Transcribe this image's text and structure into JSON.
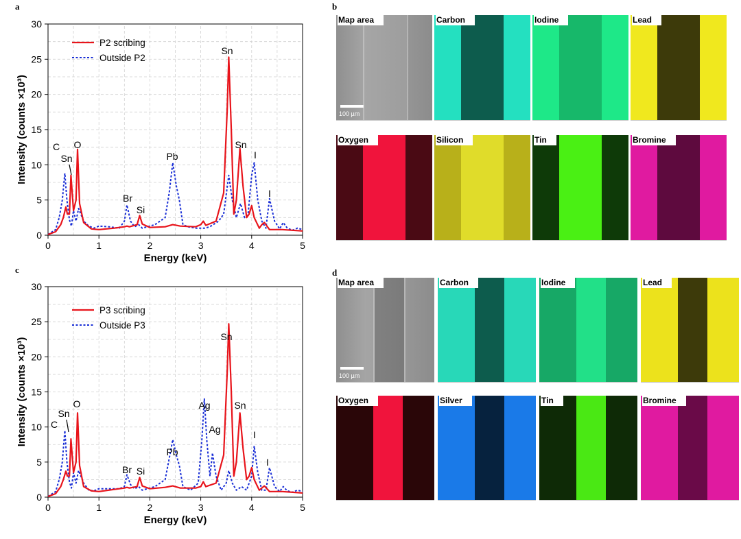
{
  "panels": {
    "a": "a",
    "b": "b",
    "c": "c",
    "d": "d"
  },
  "chart_data": [
    {
      "type": "line",
      "panel": "a",
      "xlabel": "Energy (keV)",
      "ylabel": "Intensity (counts ×10³)",
      "xlim": [
        0,
        5
      ],
      "ylim": [
        0,
        30
      ],
      "xticks": [
        "0",
        "1",
        "2",
        "3",
        "4",
        "5"
      ],
      "yticks": [
        "0",
        "5",
        "10",
        "15",
        "20",
        "25",
        "30"
      ],
      "grid": true,
      "legend_position": "top-left",
      "series": [
        {
          "name": "P2 scribing",
          "color": "#e8141b",
          "style": "solid",
          "x": [
            0,
            0.15,
            0.25,
            0.3,
            0.35,
            0.38,
            0.42,
            0.45,
            0.5,
            0.55,
            0.58,
            0.62,
            0.7,
            0.85,
            1.0,
            1.3,
            1.5,
            1.55,
            1.6,
            1.75,
            1.8,
            1.85,
            2.0,
            2.3,
            2.45,
            2.6,
            2.9,
            3.0,
            3.05,
            3.1,
            3.3,
            3.45,
            3.52,
            3.55,
            3.6,
            3.65,
            3.7,
            3.77,
            3.83,
            3.9,
            3.95,
            4.0,
            4.05,
            4.15,
            4.2,
            4.25,
            4.35,
            4.6,
            5.0
          ],
          "y": [
            0.1,
            0.5,
            1.5,
            2.5,
            4.0,
            3.0,
            3.0,
            8.5,
            3.5,
            5.0,
            12.2,
            4.5,
            1.8,
            0.9,
            0.8,
            1.0,
            1.2,
            1.3,
            1.2,
            1.5,
            2.8,
            1.6,
            1.1,
            1.2,
            1.5,
            1.3,
            1.2,
            1.5,
            2.0,
            1.4,
            2.0,
            6.0,
            18.0,
            25.3,
            15.0,
            3.0,
            5.0,
            12.3,
            7.0,
            2.5,
            3.0,
            4.2,
            2.5,
            1.0,
            1.5,
            1.8,
            0.8,
            0.8,
            0.6
          ]
        },
        {
          "name": "Outside P2",
          "color": "#1a2fd6",
          "style": "dotted",
          "x": [
            0,
            0.15,
            0.22,
            0.28,
            0.33,
            0.37,
            0.42,
            0.46,
            0.5,
            0.55,
            0.6,
            0.7,
            0.8,
            0.9,
            1.0,
            1.2,
            1.4,
            1.5,
            1.55,
            1.62,
            1.7,
            1.78,
            1.85,
            1.95,
            2.1,
            2.3,
            2.38,
            2.45,
            2.52,
            2.58,
            2.65,
            2.75,
            2.9,
            3.0,
            3.1,
            3.2,
            3.35,
            3.45,
            3.55,
            3.62,
            3.7,
            3.78,
            3.86,
            3.93,
            4.0,
            4.05,
            4.12,
            4.2,
            4.28,
            4.35,
            4.45,
            4.55,
            4.62,
            4.7,
            4.8,
            4.9,
            5.0
          ],
          "y": [
            0.1,
            0.8,
            2.5,
            5.0,
            8.8,
            5.0,
            2.2,
            1.3,
            3.5,
            2.0,
            3.8,
            2.0,
            1.3,
            1.0,
            1.3,
            1.2,
            1.0,
            2.0,
            4.3,
            2.0,
            1.2,
            1.5,
            1.0,
            1.2,
            1.5,
            2.5,
            6.0,
            10.3,
            7.0,
            5.0,
            1.5,
            1.2,
            1.0,
            1.0,
            1.0,
            1.3,
            2.0,
            3.0,
            8.5,
            5.0,
            2.5,
            4.5,
            2.5,
            3.0,
            8.5,
            10.3,
            5.0,
            2.0,
            1.0,
            5.2,
            2.0,
            0.9,
            1.8,
            1.0,
            0.7,
            1.0,
            0.8
          ]
        }
      ],
      "annotations": [
        "C",
        "Sn",
        "O",
        "Br",
        "Si",
        "Pb",
        "Sn",
        "Sn",
        "I",
        "I"
      ]
    },
    {
      "type": "line",
      "panel": "c",
      "xlabel": "Energy (keV)",
      "ylabel": "Intensity (counts ×10³)",
      "xlim": [
        0,
        5
      ],
      "ylim": [
        0,
        30
      ],
      "xticks": [
        "0",
        "1",
        "2",
        "3",
        "4",
        "5"
      ],
      "yticks": [
        "0",
        "5",
        "10",
        "15",
        "20",
        "25",
        "30"
      ],
      "grid": true,
      "legend_position": "top-left",
      "series": [
        {
          "name": "P3 scribing",
          "color": "#e8141b",
          "style": "solid",
          "x": [
            0,
            0.15,
            0.25,
            0.3,
            0.35,
            0.38,
            0.42,
            0.45,
            0.5,
            0.55,
            0.58,
            0.62,
            0.7,
            0.85,
            1.0,
            1.3,
            1.5,
            1.55,
            1.6,
            1.75,
            1.8,
            1.85,
            2.0,
            2.3,
            2.45,
            2.6,
            2.9,
            3.0,
            3.05,
            3.1,
            3.3,
            3.45,
            3.52,
            3.55,
            3.6,
            3.65,
            3.7,
            3.77,
            3.83,
            3.9,
            3.95,
            4.0,
            4.05,
            4.15,
            4.2,
            4.25,
            4.35,
            4.6,
            5.0
          ],
          "y": [
            0.1,
            0.5,
            1.5,
            2.5,
            3.7,
            3.0,
            3.0,
            8.3,
            3.5,
            5.0,
            12.0,
            4.5,
            1.5,
            0.9,
            0.8,
            1.1,
            1.3,
            1.4,
            1.3,
            1.5,
            2.8,
            1.6,
            1.2,
            1.4,
            1.6,
            1.3,
            1.3,
            1.5,
            2.2,
            1.5,
            2.0,
            6.0,
            18.0,
            24.7,
            15.0,
            3.0,
            5.0,
            12.0,
            7.0,
            2.5,
            3.0,
            4.2,
            2.5,
            1.0,
            1.3,
            1.6,
            0.8,
            0.8,
            0.6
          ]
        },
        {
          "name": "Outside P3",
          "color": "#1a2fd6",
          "style": "dotted",
          "x": [
            0,
            0.15,
            0.22,
            0.28,
            0.33,
            0.37,
            0.42,
            0.46,
            0.5,
            0.55,
            0.6,
            0.7,
            0.8,
            0.9,
            1.0,
            1.2,
            1.4,
            1.5,
            1.55,
            1.62,
            1.7,
            1.78,
            1.85,
            1.95,
            2.1,
            2.3,
            2.38,
            2.45,
            2.52,
            2.58,
            2.65,
            2.8,
            2.95,
            3.02,
            3.07,
            3.12,
            3.18,
            3.23,
            3.3,
            3.4,
            3.5,
            3.55,
            3.62,
            3.7,
            3.8,
            3.9,
            4.0,
            4.05,
            4.12,
            4.2,
            4.28,
            4.35,
            4.45,
            4.55,
            4.62,
            4.7,
            4.8,
            4.9,
            5.0
          ],
          "y": [
            0.1,
            0.8,
            2.5,
            5.0,
            9.5,
            5.0,
            2.2,
            1.3,
            3.5,
            2.0,
            3.8,
            2.0,
            1.0,
            0.9,
            1.2,
            1.2,
            1.2,
            1.5,
            3.2,
            1.8,
            1.2,
            1.5,
            1.0,
            1.2,
            1.5,
            2.5,
            5.5,
            8.2,
            6.0,
            4.5,
            1.5,
            1.0,
            2.0,
            8.0,
            14.0,
            8.0,
            3.0,
            6.3,
            3.0,
            1.0,
            2.0,
            3.8,
            2.0,
            1.0,
            1.5,
            1.0,
            3.0,
            7.3,
            3.5,
            1.0,
            1.0,
            4.2,
            1.5,
            0.8,
            1.5,
            0.9,
            0.7,
            1.0,
            0.8
          ]
        }
      ],
      "annotations": [
        "C",
        "Sn",
        "O",
        "Br",
        "Si",
        "Pb",
        "Ag",
        "Ag",
        "Sn",
        "Sn",
        "I",
        "I"
      ]
    }
  ],
  "maps_b": {
    "scalebar": "100 µm",
    "tiles": [
      {
        "label": "Map area",
        "kind": "sem",
        "edge": "#9c9c9c",
        "band": "#a8a8a8"
      },
      {
        "label": "Carbon",
        "kind": "map",
        "edge": "#24e0c0",
        "band": "#0d5c4d"
      },
      {
        "label": "Iodine",
        "kind": "map",
        "edge": "#1ee888",
        "band": "#17b86a"
      },
      {
        "label": "Lead",
        "kind": "map",
        "edge": "#f0e81e",
        "band": "#3d3a0a"
      },
      {
        "label": "Oxygen",
        "kind": "map",
        "edge": "#4a0a14",
        "band": "#f0143c"
      },
      {
        "label": "Silicon",
        "kind": "map",
        "edge": "#b8b01a",
        "band": "#e0dc2a"
      },
      {
        "label": "Tin",
        "kind": "map",
        "edge": "#0e3a08",
        "band": "#4af014"
      },
      {
        "label": "Bromine",
        "kind": "map",
        "edge": "#e01aa0",
        "band": "#5e0a3e"
      }
    ]
  },
  "maps_d": {
    "scalebar": "100 µm",
    "tiles": [
      {
        "label": "Map area",
        "kind": "sem",
        "edge": "#888888",
        "band": "#5a5a5a"
      },
      {
        "label": "Carbon",
        "kind": "map",
        "edge": "#28d8b8",
        "band": "#0d5c4d"
      },
      {
        "label": "Iodine",
        "kind": "map",
        "edge": "#17a866",
        "band": "#22e088"
      },
      {
        "label": "Lead",
        "kind": "map",
        "edge": "#ece21c",
        "band": "#3d3a0a"
      },
      {
        "label": "Oxygen",
        "kind": "map",
        "edge": "#2a0608",
        "band": "#f0143c"
      },
      {
        "label": "Silver",
        "kind": "map",
        "edge": "#1a7ae8",
        "band": "#06223e"
      },
      {
        "label": "Tin",
        "kind": "map",
        "edge": "#0e2a06",
        "band": "#4ae814"
      },
      {
        "label": "Bromine",
        "kind": "map",
        "edge": "#e01aa0",
        "band": "#6a0a48"
      }
    ]
  }
}
